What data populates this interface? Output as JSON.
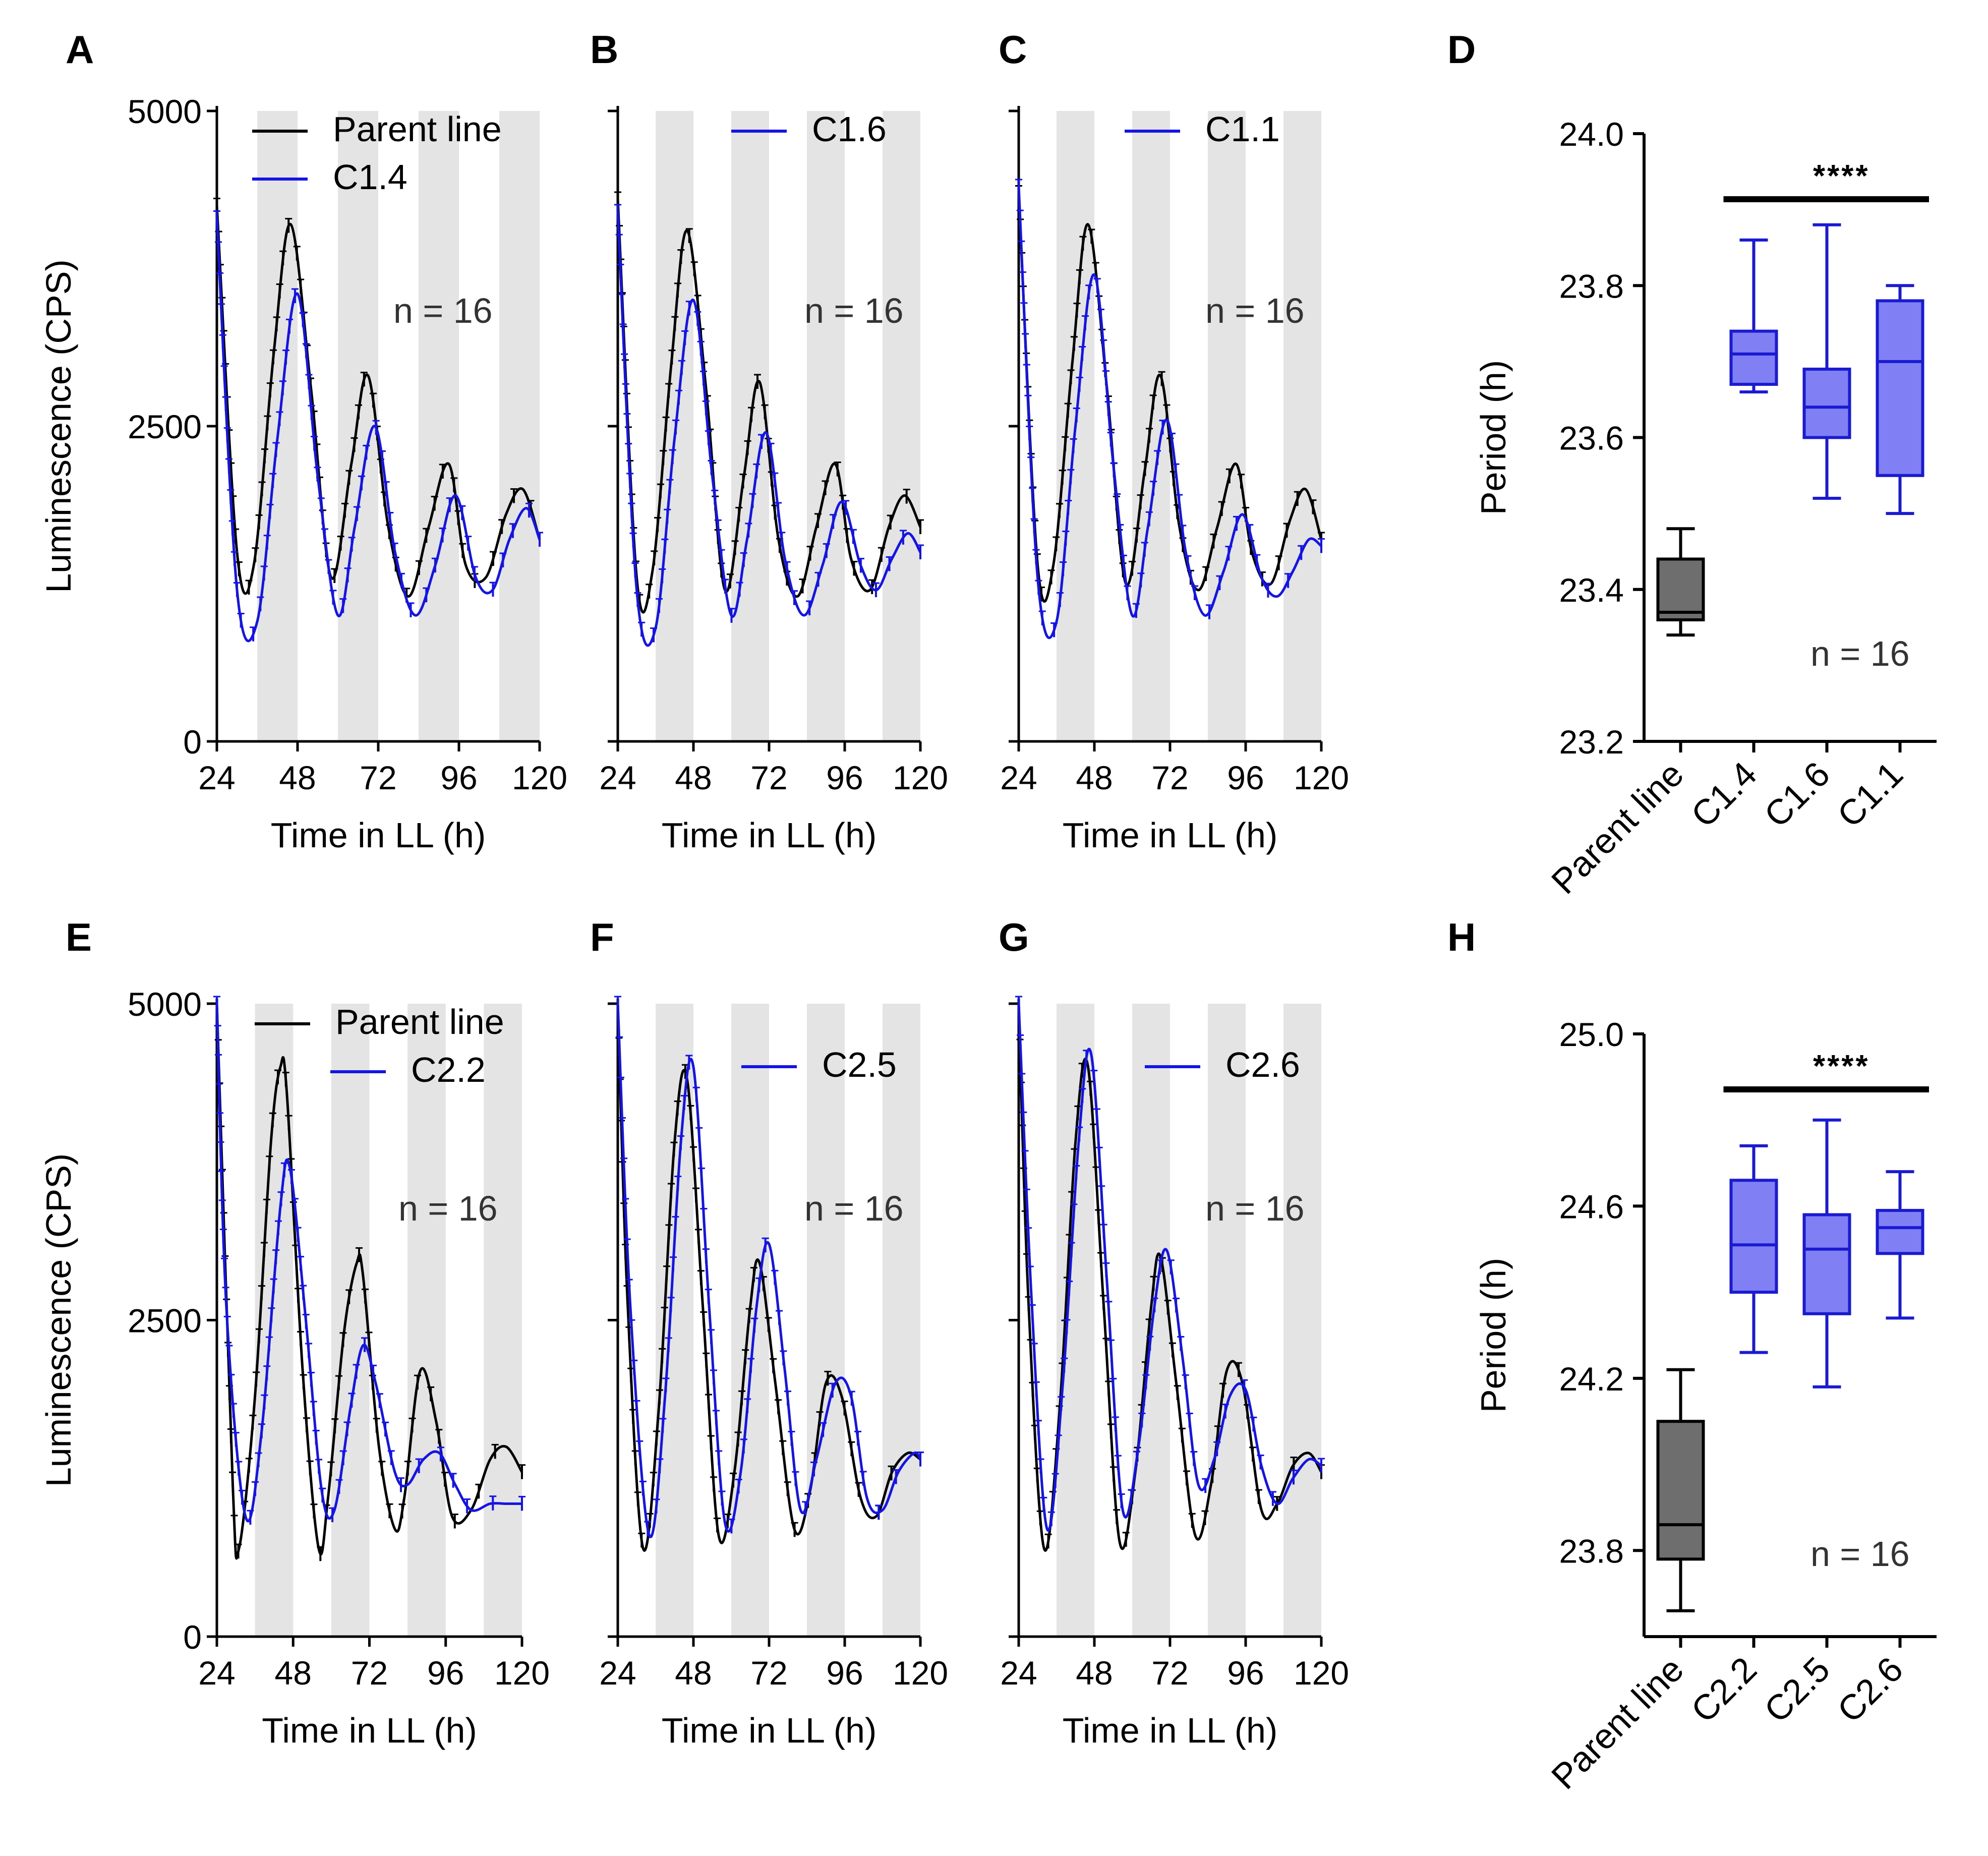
{
  "colors": {
    "parent": "#000000",
    "clone": "#1414e6",
    "parent_box": "#6e6e6e",
    "clone_box": "#8080f4",
    "clone_box_stroke": "#1a1ad2",
    "shade": "#e4e4e4"
  },
  "chart_data": [
    {
      "panel": "A",
      "type": "line",
      "xlabel": "Time in LL (h)",
      "ylabel": "Luminescence (CPS)",
      "xlim": [
        24,
        120
      ],
      "ylim": [
        0,
        5000
      ],
      "xticks": [
        "24",
        "48",
        "72",
        "96",
        "120"
      ],
      "yticks": [
        "0",
        "2500",
        "5000"
      ],
      "shaded_x_ranges": [
        [
          36,
          48
        ],
        [
          60,
          72
        ],
        [
          84,
          96
        ],
        [
          108,
          120
        ]
      ],
      "n_label": "n = 16",
      "series": [
        {
          "name": "Parent line",
          "color": "#000000",
          "x": [
            24,
            30,
            35,
            41,
            46,
            52,
            58,
            64,
            69,
            75,
            81,
            87,
            93,
            98,
            104,
            110,
            115,
            120
          ],
          "y": [
            4250,
            1500,
            1400,
            3100,
            4100,
            2800,
            1300,
            2200,
            2900,
            1700,
            1150,
            1700,
            2200,
            1400,
            1300,
            1800,
            2000,
            1600
          ]
        },
        {
          "name": "C1.4",
          "color": "#1414e6",
          "x": [
            24,
            30,
            36,
            42,
            48,
            54,
            60,
            65,
            71,
            77,
            83,
            89,
            95,
            101,
            106,
            111,
            116,
            120
          ],
          "y": [
            4150,
            1200,
            950,
            2400,
            3550,
            2100,
            1000,
            1700,
            2500,
            1500,
            1000,
            1400,
            1950,
            1300,
            1200,
            1600,
            1850,
            1600
          ]
        }
      ]
    },
    {
      "panel": "B",
      "type": "line",
      "xlabel": "Time in LL (h)",
      "ylabel": "",
      "xlim": [
        24,
        120
      ],
      "ylim": [
        0,
        5000
      ],
      "xticks": [
        "24",
        "48",
        "72",
        "96",
        "120"
      ],
      "yticks": [
        "",
        "",
        ""
      ],
      "shaded_x_ranges": [
        [
          36,
          48
        ],
        [
          60,
          72
        ],
        [
          84,
          96
        ],
        [
          108,
          120
        ]
      ],
      "n_label": "n = 16",
      "series": [
        {
          "name": "Parent line",
          "color": "#000000",
          "x": [
            24,
            30,
            35,
            41,
            46,
            52,
            58,
            64,
            69,
            75,
            81,
            87,
            93,
            98,
            104,
            110,
            115,
            120
          ],
          "y": [
            4300,
            1300,
            1350,
            3000,
            4050,
            2800,
            1200,
            2100,
            2850,
            1600,
            1150,
            1700,
            2200,
            1450,
            1200,
            1700,
            1950,
            1700
          ]
        },
        {
          "name": "C1.6",
          "color": "#1414e6",
          "x": [
            24,
            30,
            36,
            42,
            48,
            54,
            60,
            65,
            71,
            77,
            83,
            89,
            95,
            101,
            106,
            111,
            116,
            120
          ],
          "y": [
            4200,
            1200,
            900,
            2400,
            3500,
            2100,
            1000,
            1600,
            2450,
            1450,
            1000,
            1400,
            1900,
            1400,
            1200,
            1450,
            1650,
            1500
          ]
        }
      ]
    },
    {
      "panel": "C",
      "type": "line",
      "xlabel": "Time in LL (h)",
      "ylabel": "",
      "xlim": [
        24,
        120
      ],
      "ylim": [
        0,
        5000
      ],
      "xticks": [
        "24",
        "48",
        "72",
        "96",
        "120"
      ],
      "yticks": [
        "",
        "",
        ""
      ],
      "shaded_x_ranges": [
        [
          36,
          48
        ],
        [
          60,
          72
        ],
        [
          84,
          96
        ],
        [
          108,
          120
        ]
      ],
      "n_label": "n = 16",
      "series": [
        {
          "name": "Parent line",
          "color": "#000000",
          "x": [
            24,
            30,
            35,
            41,
            46,
            52,
            58,
            64,
            69,
            75,
            81,
            87,
            93,
            98,
            104,
            110,
            115,
            120
          ],
          "y": [
            4350,
            1400,
            1400,
            3000,
            4100,
            2800,
            1250,
            2150,
            2900,
            1700,
            1200,
            1700,
            2200,
            1500,
            1250,
            1750,
            2000,
            1600
          ]
        },
        {
          "name": "C1.1",
          "color": "#1414e6",
          "x": [
            24,
            30,
            36,
            42,
            48,
            54,
            60,
            65,
            71,
            77,
            83,
            89,
            95,
            101,
            106,
            111,
            116,
            120
          ],
          "y": [
            4400,
            1300,
            950,
            2500,
            3700,
            2200,
            1000,
            1700,
            2550,
            1500,
            1000,
            1350,
            1800,
            1300,
            1150,
            1350,
            1600,
            1550
          ]
        }
      ]
    },
    {
      "panel": "D",
      "type": "box",
      "ylabel": "Period (h)",
      "ylim": [
        23.2,
        24.0
      ],
      "yticks": [
        "23.2",
        "23.4",
        "23.6",
        "23.8",
        "24.0"
      ],
      "categories": [
        "Parent line",
        "C1.4",
        "C1.6",
        "C1.1"
      ],
      "significance": "****",
      "n_label": "n = 16",
      "boxes": [
        {
          "name": "Parent line",
          "min": 23.34,
          "q1": 23.36,
          "median": 23.37,
          "q3": 23.44,
          "max": 23.48
        },
        {
          "name": "C1.4",
          "min": 23.66,
          "q1": 23.67,
          "median": 23.71,
          "q3": 23.74,
          "max": 23.86
        },
        {
          "name": "C1.6",
          "min": 23.52,
          "q1": 23.6,
          "median": 23.64,
          "q3": 23.69,
          "max": 23.88
        },
        {
          "name": "C1.1",
          "min": 23.5,
          "q1": 23.55,
          "median": 23.7,
          "q3": 23.78,
          "max": 23.8
        }
      ]
    },
    {
      "panel": "E",
      "type": "line",
      "xlabel": "Time in LL (h)",
      "ylabel": "Luminescence (CPS)",
      "xlim": [
        24,
        120
      ],
      "ylim": [
        0,
        5000
      ],
      "xticks": [
        "24",
        "48",
        "72",
        "96",
        "120"
      ],
      "yticks": [
        "0",
        "2500",
        "5000"
      ],
      "shaded_x_ranges": [
        [
          36,
          48
        ],
        [
          60,
          72
        ],
        [
          84,
          96
        ],
        [
          108,
          120
        ]
      ],
      "n_label": "n = 16",
      "series": [
        {
          "name": "Parent line",
          "color": "#000000",
          "x": [
            24,
            29,
            31,
            36,
            41,
            44,
            46,
            51,
            56,
            59,
            64,
            68,
            70,
            75,
            80,
            83,
            88,
            93,
            98,
            104,
            110,
            115,
            120
          ],
          "y": [
            5000,
            1200,
            700,
            1900,
            3900,
            4500,
            4300,
            2100,
            700,
            1100,
            2400,
            2950,
            2850,
            1500,
            850,
            1100,
            2100,
            1700,
            950,
            1000,
            1400,
            1500,
            1300
          ]
        },
        {
          "name": "C2.2",
          "color": "#1414e6",
          "x": [
            24,
            27,
            33,
            38,
            44,
            47,
            52,
            57,
            61,
            66,
            70,
            74,
            80,
            84,
            89,
            94,
            99,
            104,
            110,
            115,
            120
          ],
          "y": [
            5000,
            2600,
            950,
            1600,
            3400,
            3700,
            2500,
            1150,
            1000,
            1800,
            2300,
            2000,
            1300,
            1200,
            1400,
            1450,
            1200,
            1000,
            1050,
            1050,
            1050
          ]
        }
      ]
    },
    {
      "panel": "F",
      "type": "line",
      "xlabel": "Time in LL (h)",
      "ylabel": "",
      "xlim": [
        24,
        120
      ],
      "ylim": [
        0,
        5000
      ],
      "xticks": [
        "24",
        "48",
        "72",
        "96",
        "120"
      ],
      "yticks": [
        "",
        "",
        ""
      ],
      "shaded_x_ranges": [
        [
          36,
          48
        ],
        [
          60,
          72
        ],
        [
          84,
          96
        ],
        [
          108,
          120
        ]
      ],
      "n_label": "n = 16",
      "series": [
        {
          "name": "Parent line",
          "color": "#000000",
          "x": [
            24,
            27,
            32,
            37,
            42,
            46,
            51,
            56,
            61,
            66,
            69,
            74,
            80,
            85,
            90,
            95,
            101,
            106,
            111,
            116,
            120
          ],
          "y": [
            5000,
            2700,
            700,
            1800,
            3900,
            4400,
            2600,
            800,
            1300,
            2600,
            2950,
            2000,
            850,
            1150,
            2000,
            1900,
            1100,
            950,
            1300,
            1450,
            1400
          ]
        },
        {
          "name": "C2.5",
          "color": "#1414e6",
          "x": [
            24,
            28,
            34,
            39,
            44,
            48,
            53,
            58,
            63,
            68,
            72,
            77,
            82,
            87,
            93,
            98,
            103,
            108,
            113,
            118,
            120
          ],
          "y": [
            5000,
            2600,
            800,
            1900,
            3900,
            4500,
            2600,
            900,
            1300,
            2600,
            3100,
            2100,
            1000,
            1400,
            2000,
            1900,
            1100,
            1000,
            1300,
            1450,
            1400
          ]
        }
      ]
    },
    {
      "panel": "G",
      "type": "line",
      "xlabel": "Time in LL (h)",
      "ylabel": "",
      "xlim": [
        24,
        120
      ],
      "ylim": [
        0,
        5000
      ],
      "xticks": [
        "24",
        "48",
        "72",
        "96",
        "120"
      ],
      "yticks": [
        "",
        "",
        ""
      ],
      "shaded_x_ranges": [
        [
          36,
          48
        ],
        [
          60,
          72
        ],
        [
          84,
          96
        ],
        [
          108,
          120
        ]
      ],
      "n_label": "n = 16",
      "series": [
        {
          "name": "Parent line",
          "color": "#000000",
          "x": [
            24,
            27,
            32,
            37,
            42,
            46,
            51,
            56,
            61,
            66,
            69,
            74,
            80,
            85,
            90,
            95,
            101,
            106,
            111,
            116,
            120
          ],
          "y": [
            5000,
            2700,
            700,
            1800,
            3900,
            4500,
            2600,
            750,
            1300,
            2600,
            3000,
            2000,
            800,
            1200,
            2100,
            2000,
            1000,
            1050,
            1350,
            1450,
            1300
          ]
        },
        {
          "name": "C2.6",
          "color": "#1414e6",
          "x": [
            24,
            28,
            33,
            38,
            43,
            47,
            52,
            57,
            62,
            67,
            71,
            76,
            81,
            86,
            91,
            96,
            101,
            106,
            111,
            116,
            120
          ],
          "y": [
            5000,
            2700,
            850,
            2000,
            3900,
            4600,
            2800,
            1000,
            1500,
            2600,
            3050,
            2200,
            1200,
            1400,
            1900,
            1950,
            1350,
            1050,
            1250,
            1400,
            1350
          ]
        }
      ]
    },
    {
      "panel": "H",
      "type": "box",
      "ylabel": "Period (h)",
      "ylim": [
        23.6,
        25.0
      ],
      "yticks": [
        "23.8",
        "24.2",
        "24.6",
        "25.0"
      ],
      "categories": [
        "Parent line",
        "C2.2",
        "C2.5",
        "C2.6"
      ],
      "significance": "****",
      "n_label": "n = 16",
      "boxes": [
        {
          "name": "Parent line",
          "min": 23.66,
          "q1": 23.78,
          "median": 23.86,
          "q3": 24.1,
          "max": 24.22
        },
        {
          "name": "C2.2",
          "min": 24.26,
          "q1": 24.4,
          "median": 24.51,
          "q3": 24.66,
          "max": 24.74
        },
        {
          "name": "C2.5",
          "min": 24.18,
          "q1": 24.35,
          "median": 24.5,
          "q3": 24.58,
          "max": 24.8
        },
        {
          "name": "C2.6",
          "min": 24.34,
          "q1": 24.49,
          "median": 24.55,
          "q3": 24.59,
          "max": 24.68
        }
      ]
    }
  ]
}
